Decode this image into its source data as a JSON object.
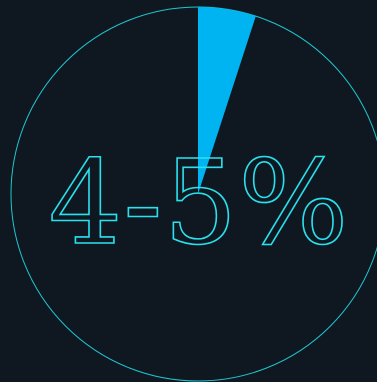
{
  "chart_data": {
    "type": "pie",
    "slices": [
      {
        "value": 5,
        "color": "#00b4f2"
      },
      {
        "value": 95,
        "color": "none"
      }
    ],
    "center_label": "4-5%",
    "colors": {
      "background": "#0f1820",
      "ring": "#1ec6d2",
      "label_outline": "#29e0ee",
      "highlight": "#00b4f2"
    }
  }
}
